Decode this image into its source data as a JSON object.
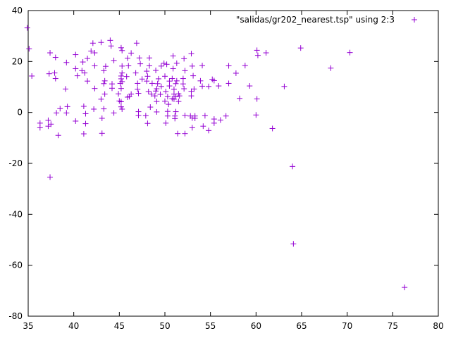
{
  "chart_data": {
    "type": "scatter",
    "title": "",
    "xlabel": "",
    "ylabel": "",
    "xlim": [
      35,
      80
    ],
    "ylim": [
      -80,
      40
    ],
    "xticks": [
      35,
      40,
      45,
      50,
      55,
      60,
      65,
      70,
      75,
      80
    ],
    "yticks": [
      -80,
      -60,
      -40,
      -20,
      0,
      20,
      40
    ],
    "grid": false,
    "legend_position": "top-right",
    "series": [
      {
        "name": "\"salidas/gr202_nearest.tsp\" using 2:3",
        "color": "#9400d3",
        "marker": "plus",
        "points": [
          [
            34.9,
            33.2
          ],
          [
            35.1,
            25.0
          ],
          [
            35.4,
            14.3
          ],
          [
            36.3,
            -4.2
          ],
          [
            36.3,
            -6.0
          ],
          [
            37.2,
            -3.1
          ],
          [
            37.2,
            -5.4
          ],
          [
            37.3,
            15.2
          ],
          [
            37.4,
            23.4
          ],
          [
            37.5,
            -4.6
          ],
          [
            37.4,
            -25.4
          ],
          [
            37.9,
            15.5
          ],
          [
            38.0,
            13.3
          ],
          [
            38.0,
            21.6
          ],
          [
            38.1,
            -0.2
          ],
          [
            38.3,
            -9.0
          ],
          [
            38.5,
            1.5
          ],
          [
            39.1,
            9.2
          ],
          [
            39.2,
            19.6
          ],
          [
            39.3,
            2.3
          ],
          [
            39.2,
            -0.2
          ],
          [
            40.2,
            17.2
          ],
          [
            40.2,
            22.7
          ],
          [
            40.2,
            -3.4
          ],
          [
            40.4,
            14.4
          ],
          [
            40.9,
            16.4
          ],
          [
            41.0,
            19.8
          ],
          [
            41.1,
            2.4
          ],
          [
            41.1,
            -8.4
          ],
          [
            41.2,
            15.5
          ],
          [
            41.3,
            -0.5
          ],
          [
            41.3,
            -4.4
          ],
          [
            41.5,
            21.2
          ],
          [
            41.5,
            12.3
          ],
          [
            41.9,
            24.1
          ],
          [
            42.1,
            27.2
          ],
          [
            42.2,
            1.3
          ],
          [
            42.3,
            23.4
          ],
          [
            42.3,
            9.4
          ],
          [
            42.3,
            18.3
          ],
          [
            43.0,
            27.5
          ],
          [
            43.0,
            5.2
          ],
          [
            43.1,
            -2.3
          ],
          [
            43.1,
            -8.2
          ],
          [
            43.3,
            16.4
          ],
          [
            43.3,
            1.4
          ],
          [
            43.3,
            11.3
          ],
          [
            43.4,
            7.2
          ],
          [
            43.4,
            12.4
          ],
          [
            43.5,
            18.1
          ],
          [
            44.0,
            28.3
          ],
          [
            44.1,
            26.1
          ],
          [
            44.2,
            9.5
          ],
          [
            44.2,
            11.2
          ],
          [
            44.4,
            20.4
          ],
          [
            44.4,
            -0.2
          ],
          [
            44.9,
            7.3
          ],
          [
            45.0,
            4.5
          ],
          [
            45.1,
            11.4
          ],
          [
            45.2,
            14.3
          ],
          [
            45.2,
            13.2
          ],
          [
            45.2,
            9.4
          ],
          [
            45.2,
            4.2
          ],
          [
            45.2,
            25.4
          ],
          [
            45.2,
            2.2
          ],
          [
            45.3,
            12.1
          ],
          [
            45.3,
            24.3
          ],
          [
            45.3,
            15.5
          ],
          [
            45.3,
            18.2
          ],
          [
            45.3,
            1.3
          ],
          [
            45.8,
            14.1
          ],
          [
            45.9,
            21.3
          ],
          [
            45.9,
            6.0
          ],
          [
            46.0,
            18.3
          ],
          [
            46.1,
            6.2
          ],
          [
            46.3,
            23.3
          ],
          [
            46.3,
            7.2
          ],
          [
            46.8,
            15.5
          ],
          [
            46.9,
            27.2
          ],
          [
            47.0,
            9.1
          ],
          [
            47.0,
            11.4
          ],
          [
            47.1,
            7.5
          ],
          [
            47.1,
            0.3
          ],
          [
            47.1,
            -1.2
          ],
          [
            47.2,
            21.4
          ],
          [
            47.3,
            19.1
          ],
          [
            47.5,
            13.1
          ],
          [
            47.9,
            -1.3
          ],
          [
            48.0,
            16.2
          ],
          [
            48.0,
            12.3
          ],
          [
            48.1,
            14.2
          ],
          [
            48.1,
            -4.3
          ],
          [
            48.2,
            8.2
          ],
          [
            48.3,
            21.4
          ],
          [
            48.3,
            18.3
          ],
          [
            48.4,
            2.1
          ],
          [
            48.5,
            7.2
          ],
          [
            48.6,
            11.4
          ],
          [
            48.9,
            6.5
          ],
          [
            49.0,
            8.4
          ],
          [
            49.0,
            16.5
          ],
          [
            49.1,
            9.3
          ],
          [
            49.1,
            4.3
          ],
          [
            49.1,
            0.2
          ],
          [
            49.2,
            11.3
          ],
          [
            49.3,
            13.2
          ],
          [
            49.5,
            7.1
          ],
          [
            49.6,
            18.2
          ],
          [
            49.6,
            10.2
          ],
          [
            49.9,
            19.3
          ],
          [
            50.0,
            14.2
          ],
          [
            50.0,
            4.4
          ],
          [
            50.1,
            8.2
          ],
          [
            50.1,
            -4.2
          ],
          [
            50.2,
            18.9
          ],
          [
            50.3,
            6.2
          ],
          [
            50.3,
            0.4
          ],
          [
            50.3,
            -1.4
          ],
          [
            50.4,
            3.2
          ],
          [
            50.5,
            10.4
          ],
          [
            50.5,
            12.3
          ],
          [
            50.8,
            5.4
          ],
          [
            50.8,
            13.3
          ],
          [
            50.9,
            17.2
          ],
          [
            50.9,
            22.2
          ],
          [
            51.0,
            5.2
          ],
          [
            51.0,
            7.2
          ],
          [
            51.0,
            9.1
          ],
          [
            51.1,
            -1.4
          ],
          [
            51.1,
            -2.4
          ],
          [
            51.2,
            0.3
          ],
          [
            51.2,
            6.2
          ],
          [
            51.2,
            11.3
          ],
          [
            51.3,
            12.4
          ],
          [
            51.3,
            19.3
          ],
          [
            51.4,
            -8.3
          ],
          [
            51.5,
            4.3
          ],
          [
            51.5,
            7.3
          ],
          [
            51.6,
            6.5
          ],
          [
            52.0,
            11.2
          ],
          [
            52.0,
            13.3
          ],
          [
            52.1,
            21.1
          ],
          [
            52.1,
            9.3
          ],
          [
            52.2,
            -1.2
          ],
          [
            52.2,
            -8.3
          ],
          [
            52.2,
            16.4
          ],
          [
            52.8,
            -1.4
          ],
          [
            52.9,
            23.1
          ],
          [
            52.9,
            8.3
          ],
          [
            52.9,
            6.5
          ],
          [
            53.0,
            18.2
          ],
          [
            53.0,
            -2.2
          ],
          [
            53.0,
            -6.0
          ],
          [
            53.1,
            14.4
          ],
          [
            53.2,
            9.2
          ],
          [
            53.3,
            -2.3
          ],
          [
            53.3,
            -1.4
          ],
          [
            53.9,
            12.4
          ],
          [
            54.1,
            18.4
          ],
          [
            54.1,
            10.3
          ],
          [
            54.2,
            -5.4
          ],
          [
            54.4,
            -1.3
          ],
          [
            54.8,
            10.2
          ],
          [
            54.8,
            -7.1
          ],
          [
            55.2,
            13.0
          ],
          [
            55.4,
            12.5
          ],
          [
            55.4,
            -2.6
          ],
          [
            55.4,
            -4.2
          ],
          [
            55.9,
            10.4
          ],
          [
            56.1,
            -3.0
          ],
          [
            56.7,
            -1.4
          ],
          [
            57.0,
            18.3
          ],
          [
            57.0,
            11.4
          ],
          [
            57.8,
            15.4
          ],
          [
            58.2,
            5.5
          ],
          [
            58.8,
            18.4
          ],
          [
            59.3,
            10.4
          ],
          [
            60.0,
            -1.0
          ],
          [
            60.1,
            24.4
          ],
          [
            60.1,
            5.3
          ],
          [
            60.2,
            22.4
          ],
          [
            61.1,
            23.4
          ],
          [
            61.8,
            -6.3
          ],
          [
            63.1,
            10.2
          ],
          [
            64.0,
            -21.2
          ],
          [
            64.1,
            -51.6
          ],
          [
            64.9,
            25.3
          ],
          [
            68.2,
            17.4
          ],
          [
            70.3,
            23.5
          ],
          [
            76.3,
            -68.7
          ]
        ]
      }
    ]
  }
}
